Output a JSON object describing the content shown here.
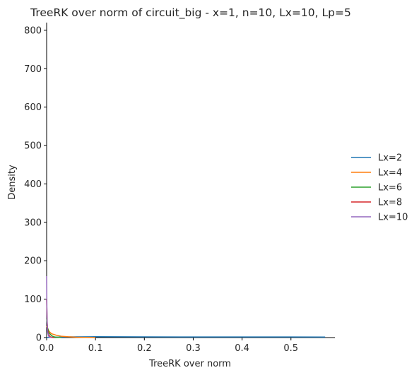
{
  "chart_data": {
    "type": "line",
    "title": "TreeRK over norm of circuit_big - x=1, n=10, Lx=10, Lp=5",
    "xlabel": "TreeRK over norm",
    "ylabel": "Density",
    "xlim": [
      0,
      0.59
    ],
    "ylim": [
      0,
      820
    ],
    "xticks": [
      0.0,
      0.1,
      0.2,
      0.3,
      0.4,
      0.5
    ],
    "xtick_labels": [
      "0.0",
      "0.1",
      "0.2",
      "0.3",
      "0.4",
      "0.5"
    ],
    "yticks": [
      0,
      100,
      200,
      300,
      400,
      500,
      600,
      700,
      800
    ],
    "ytick_labels": [
      "0",
      "100",
      "200",
      "300",
      "400",
      "500",
      "600",
      "700",
      "800"
    ],
    "grid": false,
    "legend_position": "right",
    "series": [
      {
        "name": "Lx=2",
        "color": "#1f77b4",
        "points": [
          [
            0.0,
            0.5
          ],
          [
            0.02,
            1.2
          ],
          [
            0.05,
            1.8
          ],
          [
            0.1,
            2.2
          ],
          [
            0.15,
            2.0
          ],
          [
            0.2,
            1.8
          ],
          [
            0.3,
            1.7
          ],
          [
            0.4,
            1.6
          ],
          [
            0.5,
            1.5
          ],
          [
            0.57,
            1.4
          ]
        ]
      },
      {
        "name": "Lx=4",
        "color": "#ff7f0e",
        "points": [
          [
            0.0,
            30
          ],
          [
            0.005,
            16
          ],
          [
            0.01,
            10
          ],
          [
            0.02,
            6
          ],
          [
            0.03,
            3.5
          ],
          [
            0.045,
            2
          ],
          [
            0.06,
            1
          ],
          [
            0.08,
            0.4
          ],
          [
            0.1,
            0.1
          ]
        ]
      },
      {
        "name": "Lx=6",
        "color": "#2ca02c",
        "points": [
          [
            0.0,
            50
          ],
          [
            0.002,
            25
          ],
          [
            0.005,
            12
          ],
          [
            0.01,
            5
          ],
          [
            0.015,
            2
          ],
          [
            0.02,
            0.8
          ],
          [
            0.03,
            0.2
          ]
        ]
      },
      {
        "name": "Lx=8",
        "color": "#d62728",
        "points": [
          [
            0.0,
            100
          ],
          [
            0.001,
            45
          ],
          [
            0.002,
            20
          ],
          [
            0.004,
            8
          ],
          [
            0.007,
            2.5
          ],
          [
            0.01,
            0.8
          ],
          [
            0.015,
            0.1
          ]
        ]
      },
      {
        "name": "Lx=10",
        "color": "#9467bd",
        "points": [
          [
            0.0,
            160
          ],
          [
            0.0005,
            80
          ],
          [
            0.001,
            40
          ],
          [
            0.002,
            15
          ],
          [
            0.004,
            4
          ],
          [
            0.006,
            1.2
          ],
          [
            0.01,
            0.2
          ]
        ]
      }
    ]
  }
}
